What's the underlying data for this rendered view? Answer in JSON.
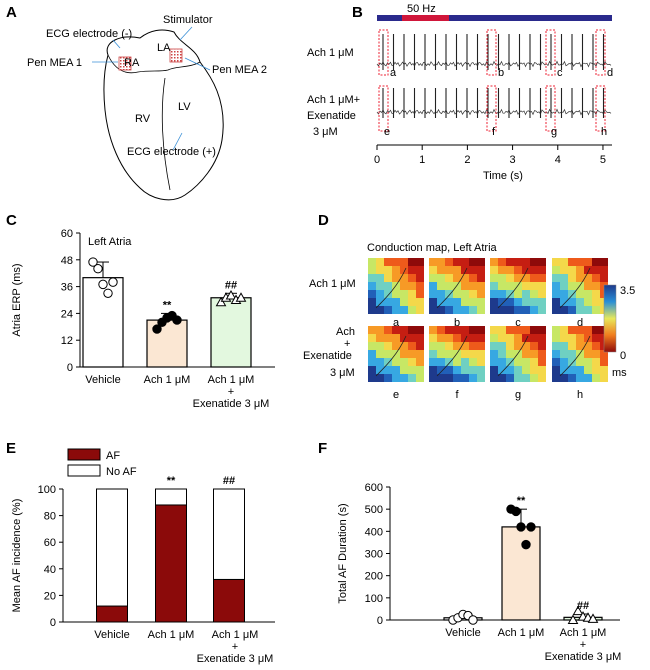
{
  "panels": {
    "A": {
      "letter": "A",
      "labels": {
        "ecg_neg": "ECG electrode (-)",
        "stimulator": "Stimulator",
        "pen_mea1": "Pen MEA 1",
        "pen_mea2": "Pen MEA 2",
        "ra": "RA",
        "la": "LA",
        "rv": "RV",
        "lv": "LV",
        "ecg_pos": "ECG electrode (+)"
      }
    },
    "B": {
      "letter": "B",
      "stim_label": "50 Hz",
      "row1": "Ach 1 μM",
      "row2_line1": "Ach 1 μM+",
      "row2_line2": "Exenatide",
      "row2_line3": "3 μM",
      "markers_top": [
        "a",
        "b",
        "c",
        "d"
      ],
      "markers_bottom": [
        "e",
        "f",
        "g",
        "h"
      ],
      "xticks": [
        "0",
        "1",
        "2",
        "3",
        "4",
        "5"
      ],
      "xlabel": "Time (s)"
    },
    "D": {
      "letter": "D",
      "title": "Conduction map, Left Atria",
      "row1": "Ach 1 μM",
      "row2_line1": "Ach",
      "row2_line2": "+",
      "row2_line3": "Exenatide",
      "row2_line4": "3 μM",
      "maps_top": [
        "a",
        "b",
        "c",
        "d"
      ],
      "maps_bottom": [
        "e",
        "f",
        "g",
        "h"
      ],
      "scale_max": "3.5",
      "scale_min": "0",
      "scale_unit": "ms"
    }
  },
  "chart_data": [
    {
      "panel": "C",
      "type": "bar",
      "title": "Left Atria",
      "ylabel": "Atria ERP (ms)",
      "ylim": [
        0,
        60
      ],
      "yticks": [
        "0",
        "12",
        "24",
        "36",
        "48",
        "60"
      ],
      "categories": [
        "Vehicle",
        "Ach 1 μM",
        "Ach 1 μM + Exenatide 3 μM"
      ],
      "tick_labels": [
        [
          "Vehicle"
        ],
        [
          "Ach 1 μM"
        ],
        [
          "Ach 1 μM",
          "+",
          "Exenatide 3 μM"
        ]
      ],
      "values": [
        40,
        21,
        31
      ],
      "errors": [
        7,
        3,
        2
      ],
      "significance": [
        "",
        "**",
        "##"
      ],
      "bar_colors": [
        "#ffffff",
        "#fbe7d3",
        "#e3f8df"
      ],
      "points": [
        [
          47,
          44,
          37,
          33,
          38
        ],
        [
          17,
          20,
          22,
          23,
          21
        ],
        [
          29,
          31,
          32,
          30,
          31
        ]
      ],
      "point_styles": [
        "open-circle",
        "filled-circle",
        "open-triangle"
      ]
    },
    {
      "panel": "E",
      "type": "bar",
      "stacked": true,
      "ylabel": "Mean AF incidence (%)",
      "ylim": [
        0,
        100
      ],
      "yticks": [
        "0",
        "20",
        "40",
        "60",
        "80",
        "100"
      ],
      "categories": [
        "Vehicle",
        "Ach 1 μM",
        "Ach 1 μM + Exenatide 3 μM"
      ],
      "tick_labels": [
        [
          "Vehicle"
        ],
        [
          "Ach 1 μM"
        ],
        [
          "Ach 1 μM",
          "+",
          "Exenatide 3 μM"
        ]
      ],
      "series": [
        {
          "name": "AF",
          "values": [
            12,
            88,
            32
          ],
          "color": "#8b0a0a"
        },
        {
          "name": "No AF",
          "values": [
            88,
            12,
            68
          ],
          "color": "#ffffff"
        }
      ],
      "significance": [
        "",
        "**",
        "##"
      ],
      "legend": "top-left"
    },
    {
      "panel": "F",
      "type": "bar",
      "ylabel": "Total AF Duration (s)",
      "ylim": [
        0,
        600
      ],
      "yticks": [
        "0",
        "100",
        "200",
        "300",
        "400",
        "500",
        "600"
      ],
      "categories": [
        "Vehicle",
        "Ach 1 μM",
        "Ach 1 μM + Exenatide 3 μM"
      ],
      "tick_labels": [
        [
          "Vehicle"
        ],
        [
          "Ach 1 μM"
        ],
        [
          "Ach 1 μM",
          "+",
          "Exenatide 3 μM"
        ]
      ],
      "values": [
        10,
        420,
        12
      ],
      "errors": [
        10,
        80,
        15
      ],
      "significance": [
        "",
        "**",
        "##"
      ],
      "bar_colors": [
        "#ffffff",
        "#fbe7d3",
        "#e3f8df"
      ],
      "points": [
        [
          0,
          10,
          25,
          20,
          0
        ],
        [
          500,
          490,
          420,
          340,
          420
        ],
        [
          0,
          40,
          15,
          10,
          5
        ]
      ],
      "point_styles": [
        "open-circle",
        "filled-circle",
        "open-triangle"
      ]
    }
  ]
}
